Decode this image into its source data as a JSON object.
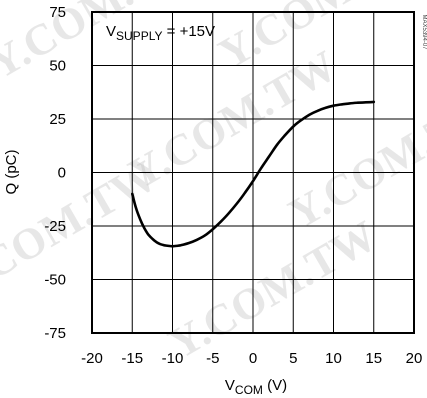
{
  "chart_data": {
    "type": "line",
    "title": "",
    "annotation": {
      "text_main": "V",
      "text_sub": "SUPPLY",
      "text_rest": " = +15V"
    },
    "xlabel": {
      "main": "V",
      "sub": "COM",
      "rest": " (V)"
    },
    "ylabel": "Q (pC)",
    "xlim": [
      -20,
      20
    ],
    "ylim": [
      -75,
      75
    ],
    "x_ticks": [
      -20,
      -15,
      -10,
      -5,
      0,
      5,
      10,
      15,
      20
    ],
    "y_ticks": [
      75,
      50,
      25,
      0,
      -25,
      -50,
      -75
    ],
    "x_tick_labels": [
      "-20",
      "-15",
      "-10",
      "-5",
      "0",
      "5",
      "10",
      "15",
      "20"
    ],
    "y_tick_labels": [
      "75",
      "50",
      "25",
      "0",
      "-25",
      "-50",
      "-75"
    ],
    "grid": true,
    "series": [
      {
        "x": [
          -15,
          -14.5,
          -14,
          -13.5,
          -13,
          -12.5,
          -12,
          -11.5,
          -11,
          -10.5,
          -10,
          -9.5,
          -9,
          -8,
          -7,
          -6,
          -5,
          -4,
          -3,
          -2,
          -1,
          0,
          1,
          2,
          3,
          4,
          5,
          6,
          7,
          8,
          9,
          10,
          11,
          12,
          13,
          14,
          15
        ],
        "y": [
          -10,
          -17,
          -22,
          -26,
          -29,
          -31,
          -32.5,
          -33.5,
          -34,
          -34.3,
          -34.5,
          -34.3,
          -34,
          -33,
          -31.5,
          -29.5,
          -26.5,
          -23,
          -19,
          -14.5,
          -9.5,
          -4,
          2,
          7.5,
          13,
          17.5,
          21.5,
          24.5,
          27,
          28.8,
          30.2,
          31.2,
          31.8,
          32.3,
          32.6,
          32.8,
          33
        ]
      }
    ]
  },
  "watermark": "Y.COM.TW",
  "side_id": "MAX5394-07"
}
